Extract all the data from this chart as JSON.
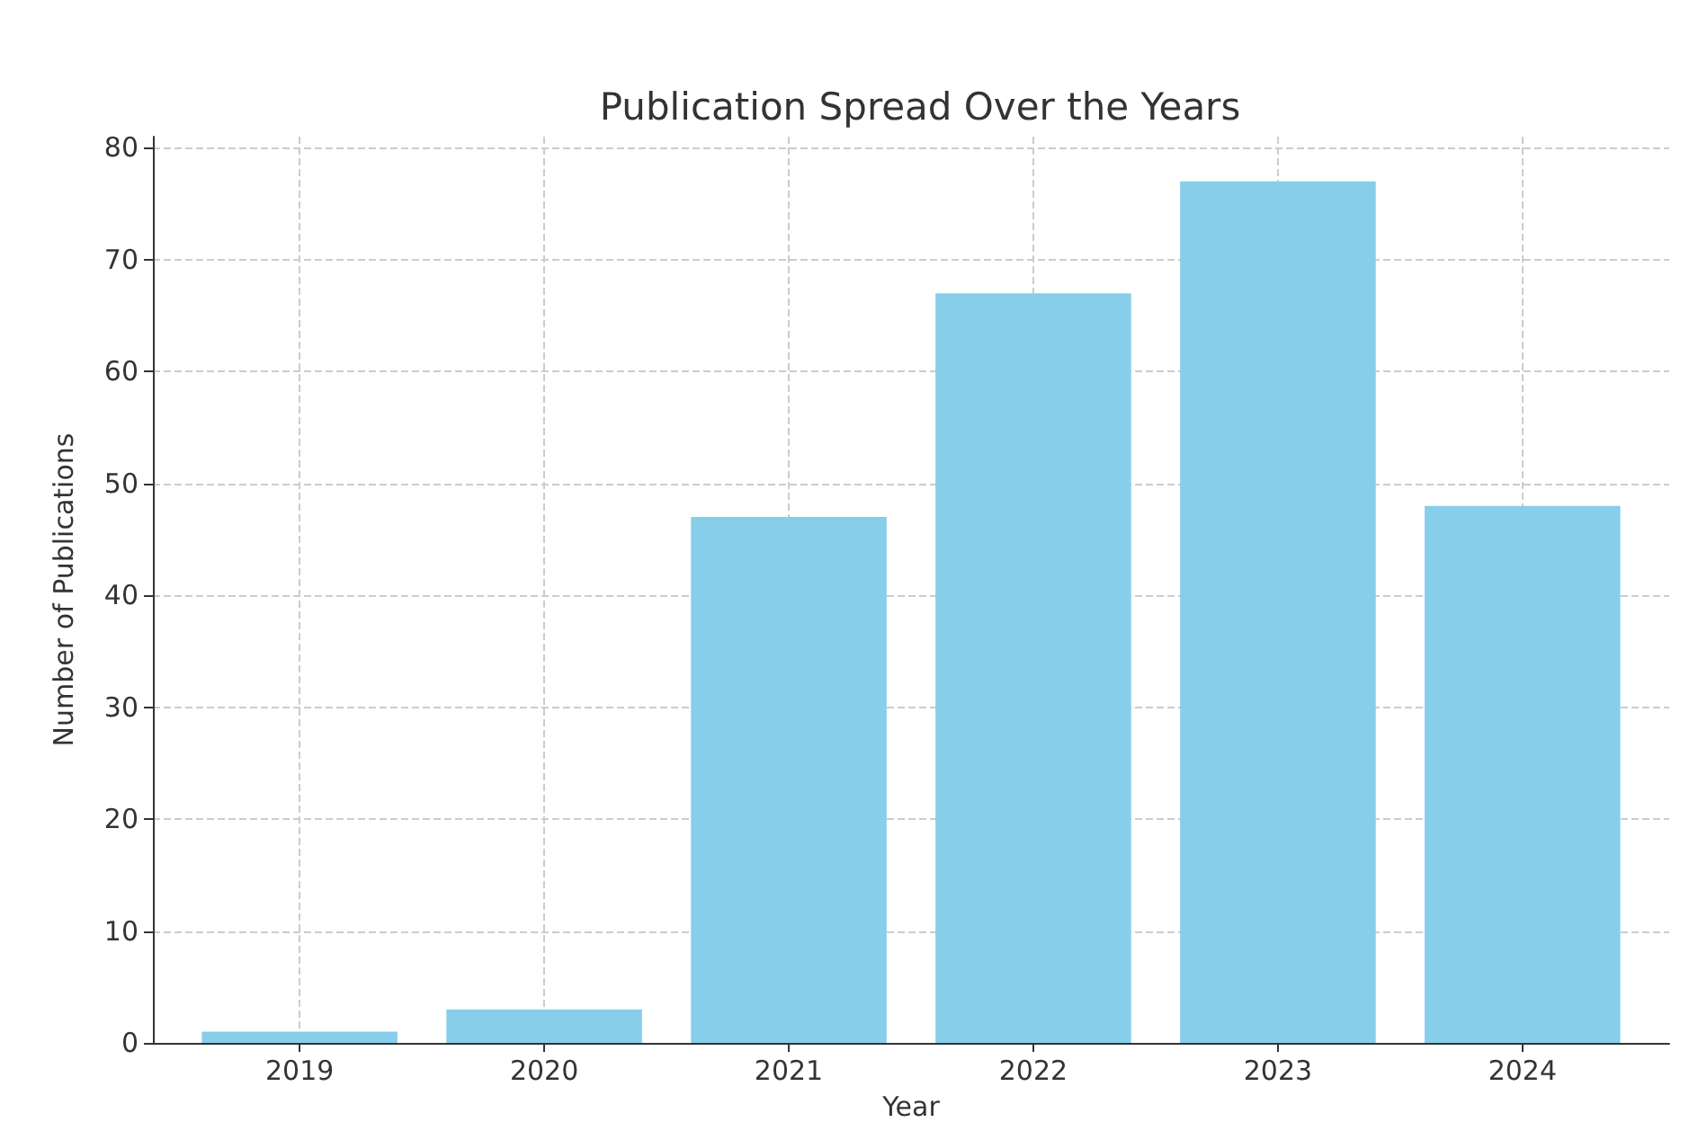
{
  "chart_data": {
    "type": "bar",
    "title": "Publication Spread Over the Years",
    "xlabel": "Year",
    "ylabel": "Number of Publications",
    "categories": [
      "2019",
      "2020",
      "2021",
      "2022",
      "2023",
      "2024"
    ],
    "values": [
      1,
      3,
      47,
      67,
      77,
      48
    ],
    "color": "#87ceeb",
    "ylim": [
      0,
      81
    ],
    "yticks": [
      0,
      10,
      20,
      30,
      40,
      50,
      60,
      70,
      80
    ],
    "grid": true
  }
}
